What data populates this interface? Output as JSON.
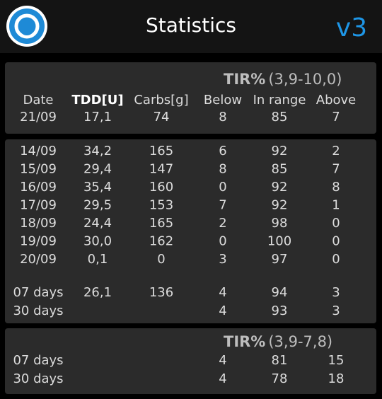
{
  "header": {
    "title": "Statistics",
    "version": "v3"
  },
  "columns": {
    "date": "Date",
    "tdd": "TDD[U]",
    "carbs": "Carbs[g]",
    "below": "Below",
    "in_range": "In range",
    "above": "Above"
  },
  "today": {
    "tir_title": "TIR%",
    "tir_range": "(3,9-10,0)",
    "row": {
      "date": "21/09",
      "tdd": "17,1",
      "carbs": "74",
      "below": "8",
      "in_range": "85",
      "above": "7"
    }
  },
  "days": [
    {
      "date": "14/09",
      "tdd": "34,2",
      "carbs": "165",
      "below": "6",
      "in_range": "92",
      "above": "2"
    },
    {
      "date": "15/09",
      "tdd": "29,4",
      "carbs": "147",
      "below": "8",
      "in_range": "85",
      "above": "7"
    },
    {
      "date": "16/09",
      "tdd": "35,4",
      "carbs": "160",
      "below": "0",
      "in_range": "92",
      "above": "8"
    },
    {
      "date": "17/09",
      "tdd": "29,5",
      "carbs": "153",
      "below": "7",
      "in_range": "92",
      "above": "1"
    },
    {
      "date": "18/09",
      "tdd": "24,4",
      "carbs": "165",
      "below": "2",
      "in_range": "98",
      "above": "0"
    },
    {
      "date": "19/09",
      "tdd": "30,0",
      "carbs": "162",
      "below": "0",
      "in_range": "100",
      "above": "0"
    },
    {
      "date": "20/09",
      "tdd": "0,1",
      "carbs": "0",
      "below": "3",
      "in_range": "97",
      "above": "0"
    }
  ],
  "averages": [
    {
      "date": "07 days",
      "tdd": "26,1",
      "carbs": "136",
      "below": "4",
      "in_range": "94",
      "above": "3"
    },
    {
      "date": "30 days",
      "below": "4",
      "in_range": "93",
      "above": "3"
    }
  ],
  "tight": {
    "tir_title": "TIR%",
    "tir_range": "(3,9-7,8)",
    "rows": [
      {
        "date": "07 days",
        "below": "4",
        "in_range": "81",
        "above": "15"
      },
      {
        "date": "30 days",
        "below": "4",
        "in_range": "78",
        "above": "18"
      }
    ]
  }
}
